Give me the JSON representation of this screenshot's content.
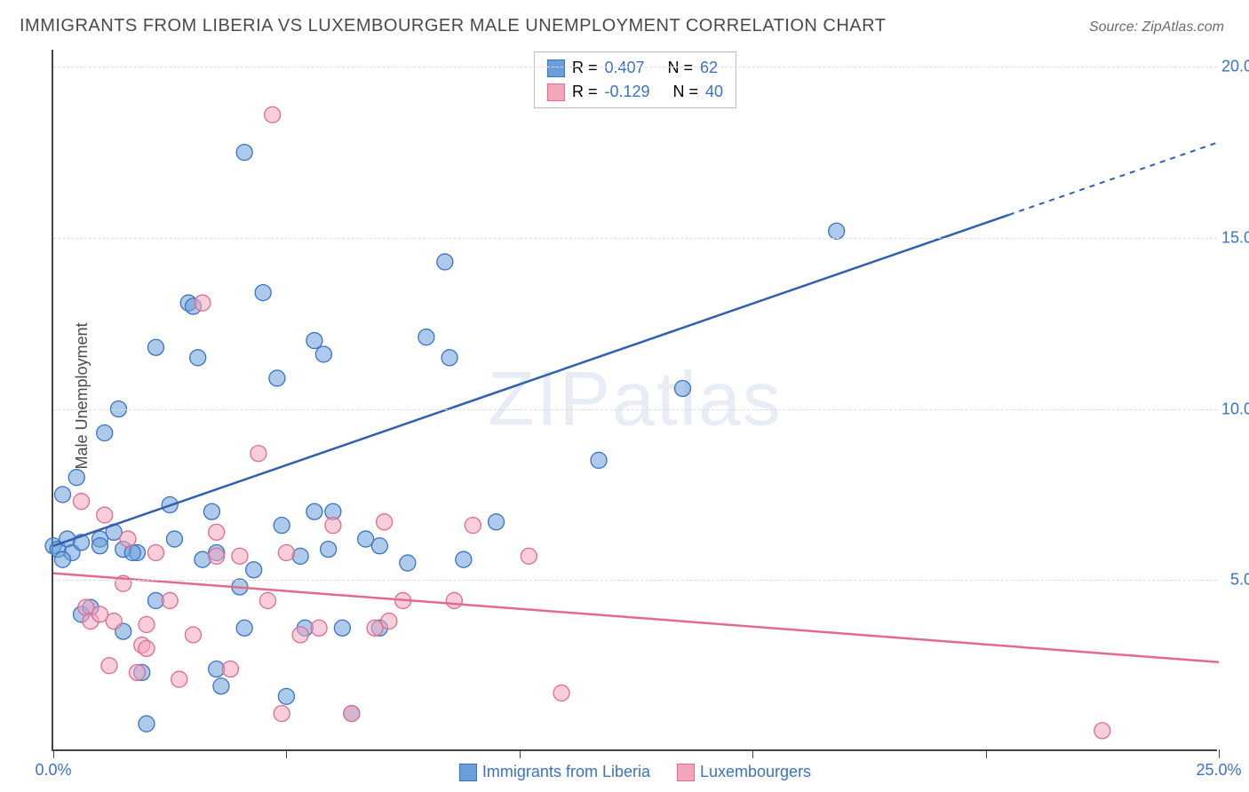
{
  "title": "IMMIGRANTS FROM LIBERIA VS LUXEMBOURGER MALE UNEMPLOYMENT CORRELATION CHART",
  "source": "Source: ZipAtlas.com",
  "ylabel": "Male Unemployment",
  "watermark": "ZIPatlas",
  "chart": {
    "type": "scatter",
    "xlim": [
      0,
      25
    ],
    "ylim": [
      0,
      20.5
    ],
    "xtick_step": 5,
    "ytick_step": 5,
    "xtick_format_pct": true,
    "ytick_format_pct": true,
    "background_color": "#ffffff",
    "grid_color": "#dddddd",
    "axis_color": "#444444",
    "point_radius": 9,
    "point_opacity": 0.55,
    "series": [
      {
        "name": "Immigrants from Liberia",
        "color": "#6a9ed9",
        "border": "#3a72c4",
        "stats": {
          "R": 0.407,
          "N": 62
        },
        "trend": {
          "x1": 0,
          "y1": 6.0,
          "x2": 25,
          "y2": 17.8,
          "stroke": "#2f5fb0",
          "dashed_from_x": 20.5
        },
        "points": [
          [
            0.0,
            6.0
          ],
          [
            0.2,
            7.5
          ],
          [
            0.1,
            5.9
          ],
          [
            0.3,
            6.2
          ],
          [
            0.5,
            8.0
          ],
          [
            0.4,
            5.8
          ],
          [
            0.2,
            5.6
          ],
          [
            0.6,
            6.1
          ],
          [
            0.6,
            4.0
          ],
          [
            0.8,
            4.2
          ],
          [
            1.1,
            9.3
          ],
          [
            1.4,
            10.0
          ],
          [
            1.3,
            6.4
          ],
          [
            1.5,
            5.9
          ],
          [
            1.8,
            5.8
          ],
          [
            1.5,
            3.5
          ],
          [
            1.9,
            2.3
          ],
          [
            2.0,
            0.8
          ],
          [
            2.2,
            11.8
          ],
          [
            2.2,
            4.4
          ],
          [
            2.6,
            6.2
          ],
          [
            2.9,
            13.1
          ],
          [
            3.0,
            13.0
          ],
          [
            3.1,
            11.5
          ],
          [
            3.2,
            5.6
          ],
          [
            3.4,
            7.0
          ],
          [
            3.5,
            5.8
          ],
          [
            3.6,
            1.9
          ],
          [
            4.0,
            4.8
          ],
          [
            4.1,
            3.6
          ],
          [
            4.1,
            17.5
          ],
          [
            4.5,
            13.4
          ],
          [
            4.8,
            10.9
          ],
          [
            4.9,
            6.6
          ],
          [
            5.0,
            1.6
          ],
          [
            5.3,
            5.7
          ],
          [
            5.4,
            3.6
          ],
          [
            5.6,
            7.0
          ],
          [
            5.6,
            12.0
          ],
          [
            5.8,
            11.6
          ],
          [
            5.9,
            5.9
          ],
          [
            6.2,
            3.6
          ],
          [
            6.4,
            1.1
          ],
          [
            6.7,
            6.2
          ],
          [
            7.0,
            3.6
          ],
          [
            7.6,
            5.5
          ],
          [
            8.0,
            12.1
          ],
          [
            8.4,
            14.3
          ],
          [
            8.5,
            11.5
          ],
          [
            8.8,
            5.6
          ],
          [
            9.5,
            6.7
          ],
          [
            11.7,
            8.5
          ],
          [
            13.5,
            10.6
          ],
          [
            16.8,
            15.2
          ],
          [
            1.0,
            6.2
          ],
          [
            1.0,
            6.0
          ],
          [
            2.5,
            7.2
          ],
          [
            3.5,
            2.4
          ],
          [
            4.3,
            5.3
          ],
          [
            6.0,
            7.0
          ],
          [
            7.0,
            6.0
          ],
          [
            1.7,
            5.8
          ]
        ]
      },
      {
        "name": "Luxembourgers",
        "color": "#f2a6bb",
        "border": "#e26a8d",
        "stats": {
          "R": -0.129,
          "N": 40
        },
        "trend": {
          "x1": 0,
          "y1": 5.2,
          "x2": 25,
          "y2": 2.6,
          "stroke": "#e26a8d",
          "dashed_from_x": null
        },
        "points": [
          [
            0.6,
            7.3
          ],
          [
            0.7,
            4.2
          ],
          [
            0.8,
            3.8
          ],
          [
            1.0,
            4.0
          ],
          [
            1.2,
            2.5
          ],
          [
            1.3,
            3.8
          ],
          [
            1.5,
            4.9
          ],
          [
            1.6,
            6.2
          ],
          [
            1.8,
            2.3
          ],
          [
            1.9,
            3.1
          ],
          [
            2.0,
            3.7
          ],
          [
            2.2,
            5.8
          ],
          [
            2.5,
            4.4
          ],
          [
            2.7,
            2.1
          ],
          [
            3.0,
            3.4
          ],
          [
            3.2,
            13.1
          ],
          [
            3.5,
            6.4
          ],
          [
            3.8,
            2.4
          ],
          [
            4.0,
            5.7
          ],
          [
            4.4,
            8.7
          ],
          [
            4.6,
            4.4
          ],
          [
            4.9,
            1.1
          ],
          [
            5.0,
            5.8
          ],
          [
            5.3,
            3.4
          ],
          [
            5.7,
            3.6
          ],
          [
            6.0,
            6.6
          ],
          [
            6.4,
            1.1
          ],
          [
            6.9,
            3.6
          ],
          [
            7.1,
            6.7
          ],
          [
            7.2,
            3.8
          ],
          [
            7.5,
            4.4
          ],
          [
            8.6,
            4.4
          ],
          [
            9.0,
            6.6
          ],
          [
            10.2,
            5.7
          ],
          [
            10.9,
            1.7
          ],
          [
            4.7,
            18.6
          ],
          [
            22.5,
            0.6
          ],
          [
            3.5,
            5.7
          ],
          [
            2.0,
            3.0
          ],
          [
            1.1,
            6.9
          ]
        ]
      }
    ],
    "stats_label": {
      "R": "R =",
      "N": "N ="
    },
    "stat_value_color": "#3a72c4"
  }
}
